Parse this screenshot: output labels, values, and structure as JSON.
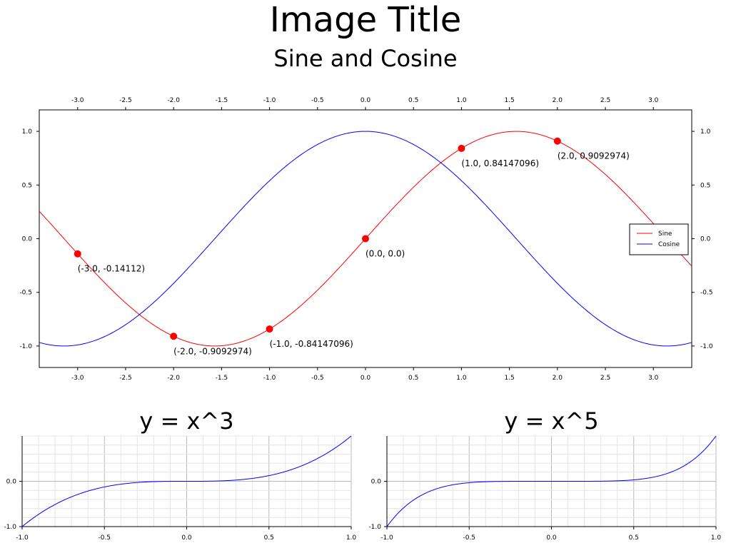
{
  "figure": {
    "title": "Image Title",
    "subtitle": "Sine and Cosine"
  },
  "chart_data": [
    {
      "type": "line",
      "xlim": [
        -3.4,
        3.4
      ],
      "ylim": [
        -1.2,
        1.2
      ],
      "x_ticks": [
        "-3.0",
        "-2.5",
        "-2.0",
        "-1.5",
        "-1.0",
        "-0.5",
        "0.0",
        "0.5",
        "1.0",
        "1.5",
        "2.0",
        "2.5",
        "3.0"
      ],
      "y_ticks": [
        "-1.0",
        "-0.5",
        "0.0",
        "0.5",
        "1.0"
      ],
      "series": [
        {
          "name": "Sine",
          "function": "sin",
          "color": "#ff0000"
        },
        {
          "name": "Cosine",
          "function": "cos",
          "color": "#0000ff"
        }
      ],
      "legend": "right",
      "grid": false,
      "points": {
        "color": "#ff0000",
        "x": [
          -3.0,
          -2.0,
          -1.0,
          0.0,
          1.0,
          2.0
        ],
        "y": [
          -0.14112,
          -0.9092974,
          -0.84147096,
          0.0,
          0.84147096,
          0.9092974
        ],
        "labels": [
          "(-3.0, -0.14112)",
          "(-2.0, -0.9092974)",
          "(-1.0, -0.84147096)",
          "(0.0, 0.0)",
          "(1.0, 0.84147096)",
          "(2.0, 0.9092974)"
        ]
      }
    },
    {
      "type": "line",
      "title": "y = x^3",
      "xlim": [
        -1.0,
        1.0
      ],
      "ylim": [
        -1.0,
        1.0
      ],
      "x_ticks": [
        "-1.0",
        "-0.5",
        "0.0",
        "0.5",
        "1.0"
      ],
      "y_ticks": [
        "-1.0",
        "0.0"
      ],
      "grid": true,
      "series": [
        {
          "function": "x^3",
          "color": "#0000ff"
        }
      ]
    },
    {
      "type": "line",
      "title": "y = x^5",
      "xlim": [
        -1.0,
        1.0
      ],
      "ylim": [
        -1.0,
        1.0
      ],
      "x_ticks": [
        "-1.0",
        "-0.5",
        "0.0",
        "0.5",
        "1.0"
      ],
      "y_ticks": [
        "-1.0",
        "0.0"
      ],
      "grid": true,
      "series": [
        {
          "function": "x^5",
          "color": "#0000ff"
        }
      ]
    }
  ]
}
